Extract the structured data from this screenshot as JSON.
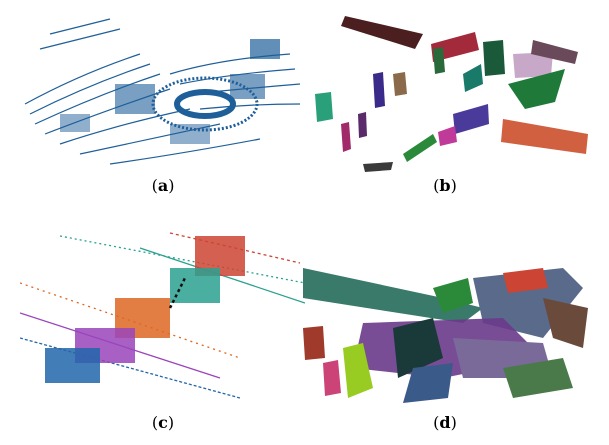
{
  "figure": {
    "panels": [
      {
        "id": "a",
        "letter": "a",
        "description_colors": [
          "#1f5f99"
        ]
      },
      {
        "id": "b",
        "letter": "b",
        "description_colors": [
          "#4b1f1f",
          "#2a8a3a",
          "#6a2a8a",
          "#d06040",
          "#1a7a6a"
        ]
      },
      {
        "id": "c",
        "letter": "c",
        "description_colors": [
          "#cc4433",
          "#2aa090",
          "#dd6622",
          "#9944bb",
          "#2266aa"
        ]
      },
      {
        "id": "d",
        "letter": "d",
        "description_colors": [
          "#3a7a6a",
          "#6a3a8a",
          "#cc4433",
          "#5a6a8a",
          "#99cc22"
        ]
      }
    ]
  }
}
